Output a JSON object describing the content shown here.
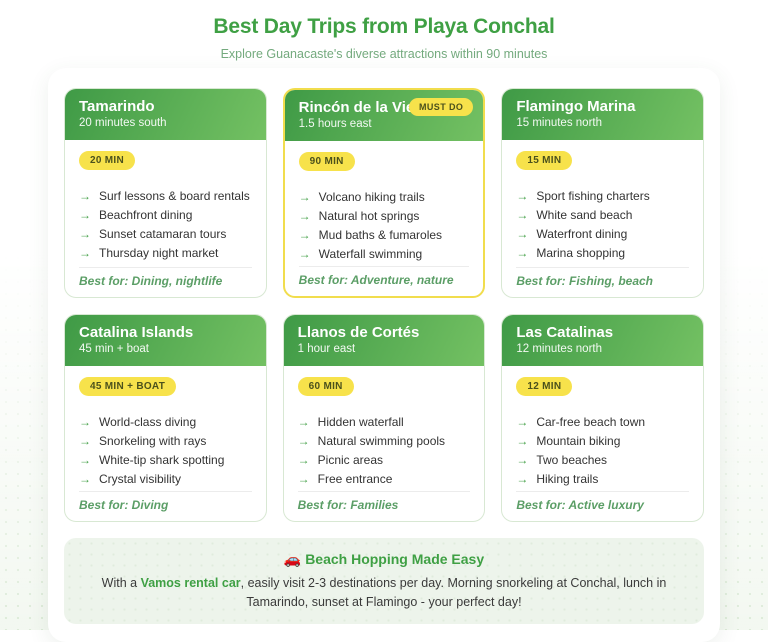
{
  "page": {
    "title": "Best Day Trips from Playa Conchal",
    "subtitle": "Explore Guanacaste's diverse attractions within 90 minutes"
  },
  "ui": {
    "arrow": "→",
    "accent_green": "#3fa044",
    "badge_yellow": "#f7e24b",
    "header_gradient": [
      "#3f9a46",
      "#74c163"
    ]
  },
  "cards": [
    {
      "name": "Tamarindo",
      "distance": "20 minutes south",
      "badge": "20 MIN",
      "items": [
        "Surf lessons & board rentals",
        "Beachfront dining",
        "Sunset catamaran tours",
        "Thursday night market"
      ],
      "best_for": "Best for: Dining, nightlife"
    },
    {
      "name": "Rincón de la Vieja",
      "distance": "1.5 hours east",
      "badge": "90 MIN",
      "must_do_label": "MUST DO",
      "items": [
        "Volcano hiking trails",
        "Natural hot springs",
        "Mud baths & fumaroles",
        "Waterfall swimming"
      ],
      "best_for": "Best for: Adventure, nature"
    },
    {
      "name": "Flamingo Marina",
      "distance": "15 minutes north",
      "badge": "15 MIN",
      "items": [
        "Sport fishing charters",
        "White sand beach",
        "Waterfront dining",
        "Marina shopping"
      ],
      "best_for": "Best for: Fishing, beach"
    },
    {
      "name": "Catalina Islands",
      "distance": "45 min + boat",
      "badge": "45 MIN + BOAT",
      "items": [
        "World-class diving",
        "Snorkeling with rays",
        "White-tip shark spotting",
        "Crystal visibility"
      ],
      "best_for": "Best for: Diving"
    },
    {
      "name": "Llanos de Cortés",
      "distance": "1 hour east",
      "badge": "60 MIN",
      "items": [
        "Hidden waterfall",
        "Natural swimming pools",
        "Picnic areas",
        "Free entrance"
      ],
      "best_for": "Best for: Families"
    },
    {
      "name": "Las Catalinas",
      "distance": "12 minutes north",
      "badge": "12 MIN",
      "items": [
        "Car-free beach town",
        "Mountain biking",
        "Two beaches",
        "Hiking trails"
      ],
      "best_for": "Best for: Active luxury"
    }
  ],
  "tip": {
    "icon": "🚗",
    "title": "Beach Hopping Made Easy",
    "text_before": "With a ",
    "link_label": "Vamos rental car",
    "text_after": ", easily visit 2-3 destinations per day. Morning snorkeling at Conchal, lunch in Tamarindo, sunset at Flamingo - your perfect day!"
  }
}
